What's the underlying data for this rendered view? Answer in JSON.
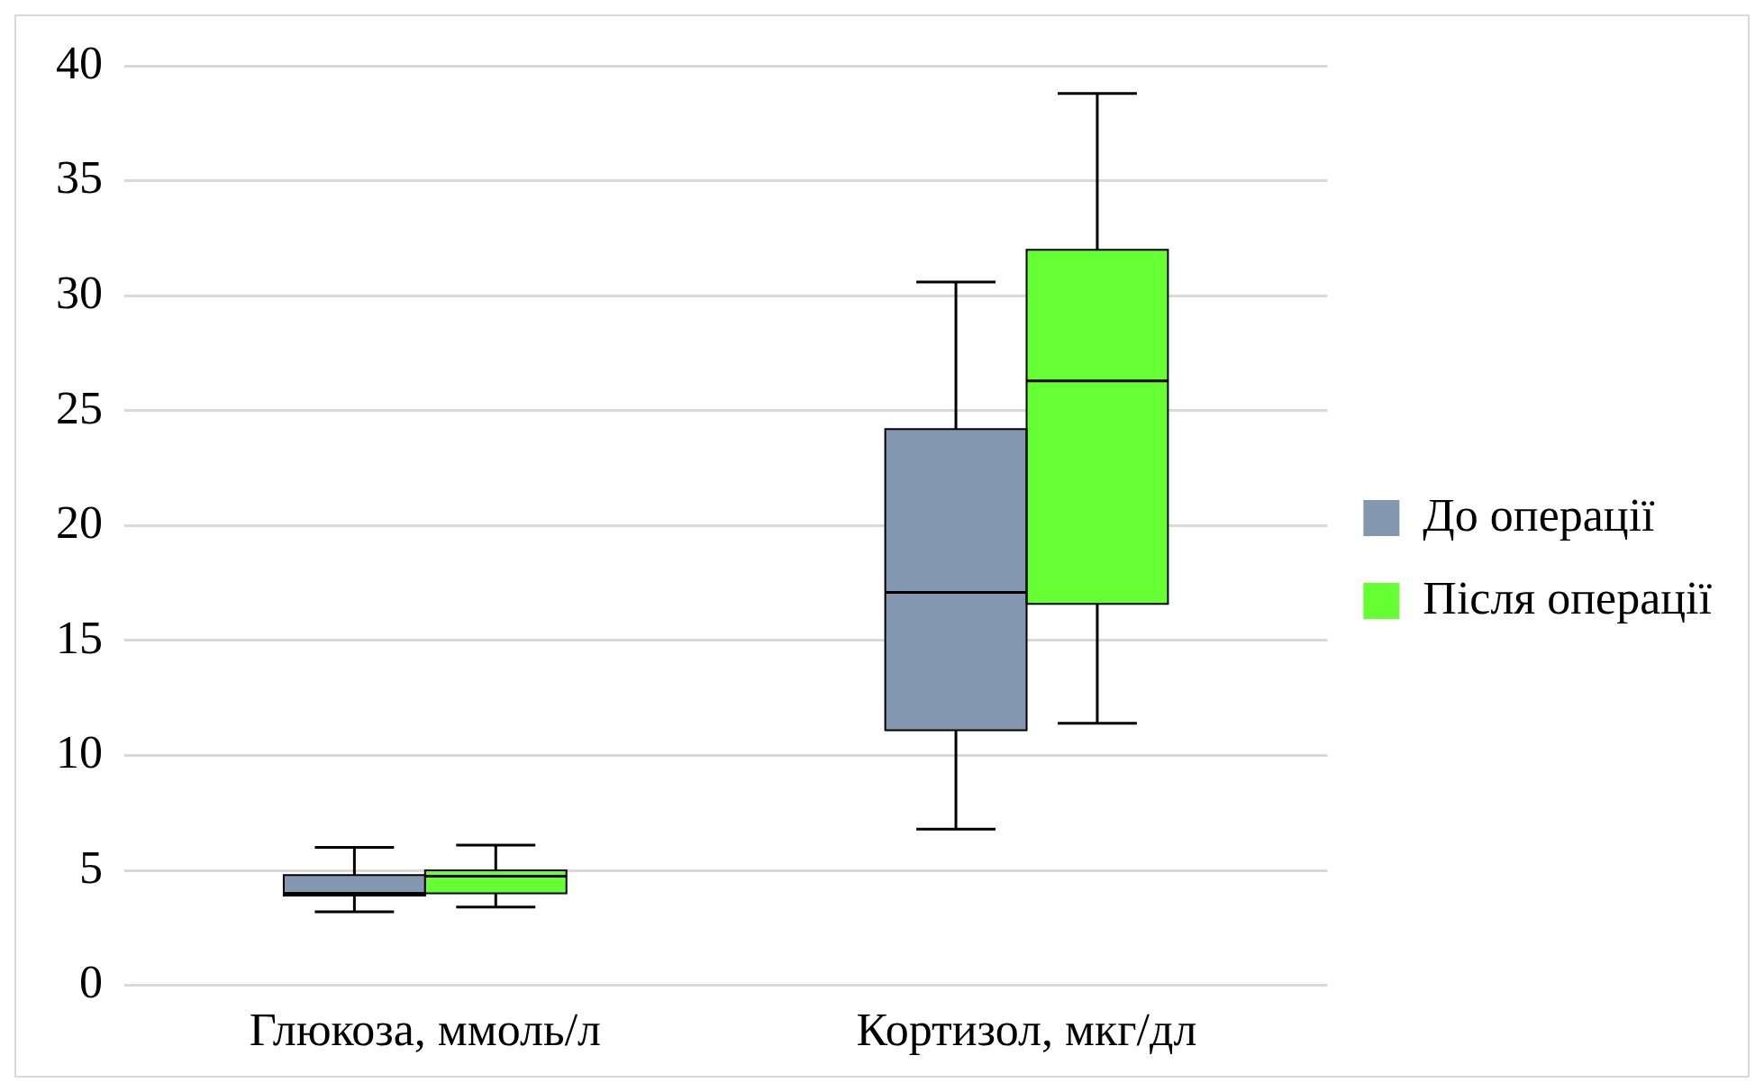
{
  "chart_data": {
    "type": "box",
    "categories": [
      "Глюкоза, ммоль/л",
      "Кортизол, мкг/дл"
    ],
    "series": [
      {
        "name": "До операції",
        "color": "#8497b0",
        "boxes": [
          {
            "low": 3.2,
            "q1": 3.9,
            "median": 4.0,
            "q3": 4.8,
            "high": 6.0
          },
          {
            "low": 6.8,
            "q1": 11.1,
            "median": 17.1,
            "q3": 24.2,
            "high": 30.6
          }
        ]
      },
      {
        "name": "Після операції",
        "color": "#66ff33",
        "boxes": [
          {
            "low": 3.4,
            "q1": 4.0,
            "median": 4.75,
            "q3": 5.0,
            "high": 6.1
          },
          {
            "low": 11.4,
            "q1": 16.6,
            "median": 26.3,
            "q3": 32.0,
            "high": 38.8
          }
        ]
      }
    ],
    "ylim": [
      0,
      40
    ],
    "yticks": [
      0,
      5,
      10,
      15,
      20,
      25,
      30,
      35,
      40
    ],
    "grid": "y",
    "legend": "right"
  }
}
